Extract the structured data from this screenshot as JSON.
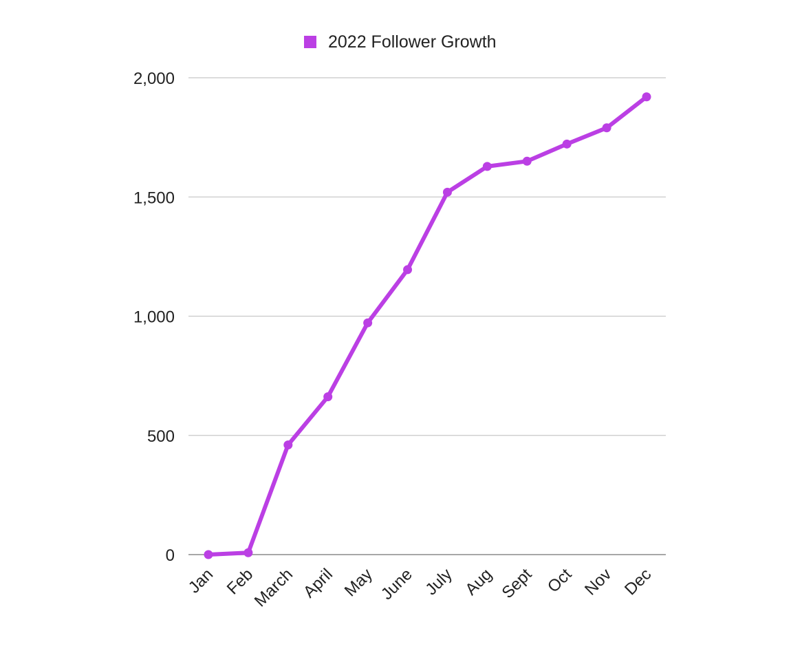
{
  "chart_data": {
    "type": "line",
    "title": "",
    "xlabel": "",
    "ylabel": "",
    "categories": [
      "Jan",
      "Feb",
      "March",
      "April",
      "May",
      "June",
      "July",
      "Aug",
      "Sept",
      "Oct",
      "Nov",
      "Dec"
    ],
    "series": [
      {
        "name": "2022 Follower Growth",
        "values": [
          0,
          8,
          460,
          662,
          972,
          1195,
          1520,
          1628,
          1650,
          1722,
          1790,
          1920
        ]
      }
    ],
    "y_ticks": [
      "0",
      "500",
      "1,000",
      "1,500",
      "2,000"
    ],
    "y_tick_values": [
      0,
      500,
      1000,
      1500,
      2000
    ],
    "ylim": [
      0,
      2000
    ],
    "grid": true,
    "legend_position": "top-center",
    "colors": {
      "series": "#bb3fe4",
      "grid": "#c8c8c8",
      "axis": "#8a8a8a",
      "text": "#222222"
    }
  }
}
